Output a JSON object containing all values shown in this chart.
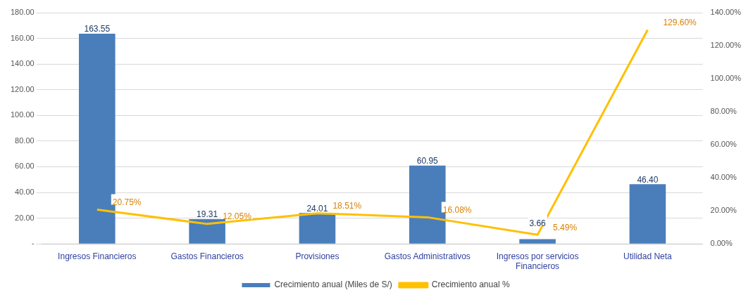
{
  "chart_data": {
    "type": "bar",
    "categories": [
      "Ingresos Financieros",
      "Gastos Financieros",
      "Provisiones",
      "Gastos Administrativos",
      "Ingresos por servicios Financieros",
      "Utilidad Neta"
    ],
    "series": [
      {
        "name": "Crecimiento anual (Miles de S/)",
        "color": "#4a7ebb",
        "values": [
          163.55,
          19.31,
          24.01,
          60.95,
          3.66,
          46.4
        ],
        "value_labels": [
          "163.55",
          "19.31",
          "24.01",
          "60.95",
          "3.66",
          "46.40"
        ]
      },
      {
        "name": "Crecimiento anual %",
        "type": "line",
        "axis": "y2",
        "color": "#ffc000",
        "values": [
          20.75,
          12.05,
          18.51,
          16.08,
          5.49,
          129.6
        ],
        "value_labels": [
          "20.75%",
          "12.05%",
          "18.51%",
          "16.08%",
          "5.49%",
          "129.60%"
        ]
      }
    ],
    "ylim": [
      0,
      180
    ],
    "yticks": [
      {
        "value": 0,
        "label": "-"
      },
      {
        "value": 20,
        "label": "20.00"
      },
      {
        "value": 40,
        "label": "40.00"
      },
      {
        "value": 60,
        "label": "60.00"
      },
      {
        "value": 80,
        "label": "80.00"
      },
      {
        "value": 100,
        "label": "100.00"
      },
      {
        "value": 120,
        "label": "120.00"
      },
      {
        "value": 140,
        "label": "140.00"
      },
      {
        "value": 160,
        "label": "160.00"
      },
      {
        "value": 180,
        "label": "180.00"
      }
    ],
    "y2lim": [
      0,
      140
    ],
    "y2ticks": [
      {
        "value": 0,
        "label": "0.00%"
      },
      {
        "value": 20,
        "label": "20.00%"
      },
      {
        "value": 40,
        "label": "40.00%"
      },
      {
        "value": 60,
        "label": "60.00%"
      },
      {
        "value": 80,
        "label": "80.00%"
      },
      {
        "value": 100,
        "label": "100.00%"
      },
      {
        "value": 120,
        "label": "120.00%"
      },
      {
        "value": 140,
        "label": "140.00%"
      }
    ],
    "grid": "y",
    "legend": "bottom",
    "marker": "none",
    "line_style": "solid"
  }
}
